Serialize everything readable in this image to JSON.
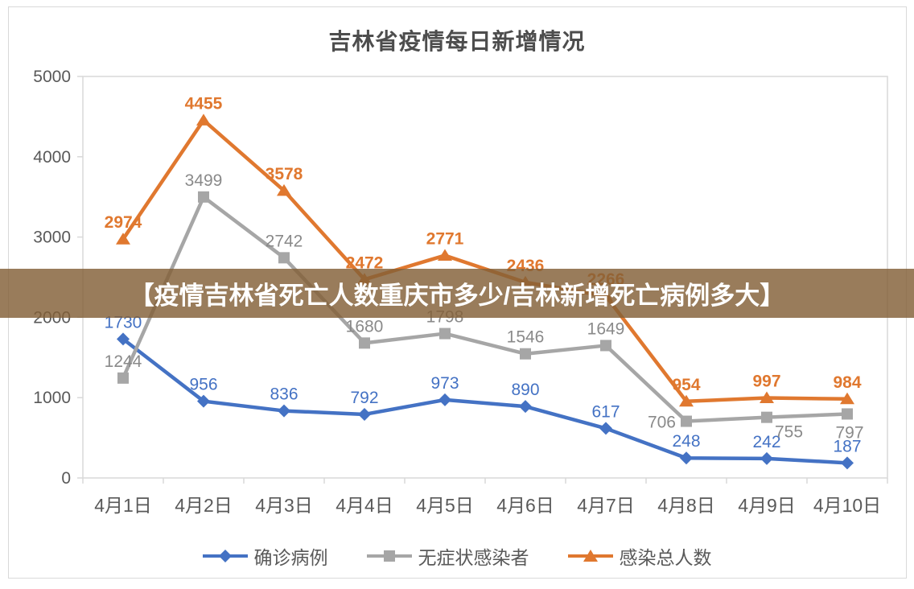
{
  "banner": {
    "text": "【疫情吉林省死亡人数重庆市多少/吉林新增死亡病例多大】"
  },
  "chart_data": {
    "type": "line",
    "title": "吉林省疫情每日新增情况",
    "categories": [
      "4月1日",
      "4月2日",
      "4月3日",
      "4月4日",
      "4月5日",
      "4月6日",
      "4月7日",
      "4月8日",
      "4月9日",
      "4月10日"
    ],
    "xlabel": "",
    "ylabel": "",
    "ylim": [
      0,
      5000
    ],
    "y_ticks": [
      0,
      1000,
      2000,
      3000,
      4000,
      5000
    ],
    "grid": false,
    "legend_position": "bottom",
    "series": [
      {
        "name": "确诊病例",
        "marker": "diamond",
        "color": "#4472C4",
        "label_color": "#4472C4",
        "bold_labels": false,
        "values": [
          1730,
          956,
          836,
          792,
          973,
          890,
          617,
          248,
          242,
          187
        ],
        "label_positions": [
          "above",
          "above",
          "above",
          "above",
          "above",
          "above",
          "above",
          "above",
          "above",
          "above"
        ]
      },
      {
        "name": "无症状感染者",
        "marker": "square",
        "color": "#A6A6A6",
        "label_color": "#8a8a8a",
        "bold_labels": false,
        "values": [
          1244,
          3499,
          2742,
          1680,
          1798,
          1546,
          1649,
          706,
          755,
          797
        ],
        "label_positions": [
          "above",
          "above",
          "above",
          "above",
          "above",
          "above",
          "above",
          "left",
          "below-right",
          "below"
        ]
      },
      {
        "name": "感染总人数",
        "marker": "triangle",
        "color": "#E0782F",
        "label_color": "#E0782F",
        "bold_labels": true,
        "values": [
          2974,
          4455,
          3578,
          2472,
          2771,
          2436,
          2266,
          954,
          997,
          984
        ],
        "label_positions": [
          "above",
          "above",
          "above",
          "above",
          "above",
          "above",
          "above",
          "above",
          "above",
          "above"
        ]
      }
    ]
  },
  "colors": {
    "axis_text": "#595959",
    "plot_border": "#d9d9d9",
    "title_text": "#4d4d4d",
    "banner_bg": "rgba(130,95,55,0.82)",
    "banner_text": "#ffffff"
  }
}
